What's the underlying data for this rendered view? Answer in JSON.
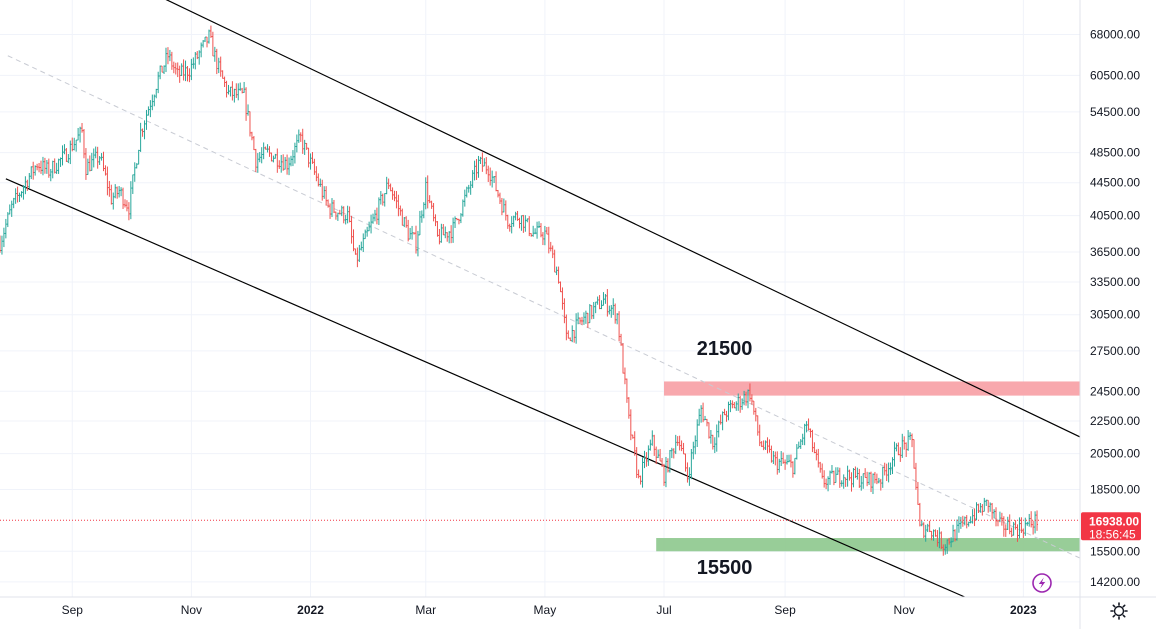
{
  "chart_data": {
    "type": "candlestick",
    "symbol_interval": "1D",
    "y_scale": "log",
    "y_ticks": [
      68000,
      60500,
      54500,
      48500,
      44500,
      40500,
      36500,
      33500,
      30500,
      27500,
      24500,
      22500,
      20500,
      18500,
      15500,
      14200
    ],
    "y_tick_labels": [
      "68000.00",
      "60500.00",
      "54500.00",
      "48500.00",
      "44500.00",
      "40500.00",
      "36500.00",
      "33500.00",
      "30500.00",
      "27500.00",
      "24500.00",
      "22500.00",
      "20500.00",
      "18500.00",
      "15500.00",
      "14200.00"
    ],
    "ylim": [
      13600,
      74000
    ],
    "x_range": [
      "2021-07-26",
      "2023-01-30"
    ],
    "x_ticks": [
      {
        "date": "2021-09-01",
        "label": "Sep",
        "year": false
      },
      {
        "date": "2021-11-01",
        "label": "Nov",
        "year": false
      },
      {
        "date": "2022-01-01",
        "label": "2022",
        "year": true
      },
      {
        "date": "2022-03-01",
        "label": "Mar",
        "year": false
      },
      {
        "date": "2022-05-01",
        "label": "May",
        "year": false
      },
      {
        "date": "2022-07-01",
        "label": "Jul",
        "year": false
      },
      {
        "date": "2022-09-01",
        "label": "Sep",
        "year": false
      },
      {
        "date": "2022-11-01",
        "label": "Nov",
        "year": false
      },
      {
        "date": "2023-01-01",
        "label": "2023",
        "year": true
      }
    ],
    "up_color": "#26a69a",
    "down_color": "#ef5350",
    "price_path": [
      [
        "2021-07-26",
        37500
      ],
      [
        "2021-08-01",
        41500
      ],
      [
        "2021-08-08",
        44500
      ],
      [
        "2021-08-14",
        47000
      ],
      [
        "2021-08-20",
        46000
      ],
      [
        "2021-08-28",
        48000
      ],
      [
        "2021-09-06",
        51500
      ],
      [
        "2021-09-08",
        46500
      ],
      [
        "2021-09-15",
        48000
      ],
      [
        "2021-09-21",
        42500
      ],
      [
        "2021-09-25",
        43500
      ],
      [
        "2021-09-30",
        41500
      ],
      [
        "2021-10-06",
        51500
      ],
      [
        "2021-10-15",
        60000
      ],
      [
        "2021-10-20",
        64000
      ],
      [
        "2021-10-25",
        60500
      ],
      [
        "2021-10-31",
        61500
      ],
      [
        "2021-11-10",
        67500
      ],
      [
        "2021-11-16",
        60500
      ],
      [
        "2021-11-20",
        57500
      ],
      [
        "2021-11-28",
        57000
      ],
      [
        "2021-12-04",
        47500
      ],
      [
        "2021-12-10",
        48500
      ],
      [
        "2021-12-20",
        47000
      ],
      [
        "2021-12-27",
        50500
      ],
      [
        "2022-01-05",
        44500
      ],
      [
        "2022-01-10",
        41500
      ],
      [
        "2022-01-20",
        40500
      ],
      [
        "2022-01-24",
        35500
      ],
      [
        "2022-02-05",
        41500
      ],
      [
        "2022-02-10",
        44500
      ],
      [
        "2022-02-20",
        38500
      ],
      [
        "2022-02-24",
        37500
      ],
      [
        "2022-03-01",
        44000
      ],
      [
        "2022-03-07",
        38000
      ],
      [
        "2022-03-15",
        39000
      ],
      [
        "2022-03-28",
        47000
      ],
      [
        "2022-04-02",
        46500
      ],
      [
        "2022-04-12",
        40000
      ],
      [
        "2022-04-18",
        40500
      ],
      [
        "2022-04-25",
        38500
      ],
      [
        "2022-05-01",
        38500
      ],
      [
        "2022-05-08",
        34000
      ],
      [
        "2022-05-12",
        28500
      ],
      [
        "2022-05-20",
        30000
      ],
      [
        "2022-05-31",
        31800
      ],
      [
        "2022-06-07",
        30500
      ],
      [
        "2022-06-13",
        22500
      ],
      [
        "2022-06-18",
        19000
      ],
      [
        "2022-06-25",
        21200
      ],
      [
        "2022-07-01",
        19300
      ],
      [
        "2022-07-08",
        21600
      ],
      [
        "2022-07-13",
        19200
      ],
      [
        "2022-07-20",
        23300
      ],
      [
        "2022-07-26",
        21200
      ],
      [
        "2022-08-01",
        23000
      ],
      [
        "2022-08-14",
        24400
      ],
      [
        "2022-08-19",
        21200
      ],
      [
        "2022-08-27",
        20000
      ],
      [
        "2022-09-05",
        19800
      ],
      [
        "2022-09-12",
        22300
      ],
      [
        "2022-09-20",
        18900
      ],
      [
        "2022-10-01",
        19300
      ],
      [
        "2022-10-12",
        19000
      ],
      [
        "2022-10-20",
        19100
      ],
      [
        "2022-10-29",
        20800
      ],
      [
        "2022-11-05",
        21200
      ],
      [
        "2022-11-09",
        16500
      ],
      [
        "2022-11-14",
        16600
      ],
      [
        "2022-11-21",
        15800
      ],
      [
        "2022-11-28",
        16400
      ],
      [
        "2022-12-05",
        17100
      ],
      [
        "2022-12-14",
        17800
      ],
      [
        "2022-12-19",
        16700
      ],
      [
        "2022-12-30",
        16550
      ],
      [
        "2023-01-08",
        16938
      ]
    ],
    "channel_upper": [
      [
        "2021-10-10",
        77000
      ],
      [
        "2023-01-30",
        21500
      ]
    ],
    "channel_lower": [
      [
        "2021-07-29",
        45000
      ],
      [
        "2022-12-02",
        13600
      ]
    ],
    "channel_mid": [
      [
        "2021-07-30",
        64000
      ],
      [
        "2023-01-30",
        15200
      ]
    ],
    "resistance_zone": {
      "from": "2022-07-01",
      "to": "2023-01-30",
      "low": 24200,
      "high": 25200,
      "color": "#f7a1a6"
    },
    "support_zone": {
      "from": "2022-06-27",
      "to": "2023-01-30",
      "low": 15500,
      "high": 16100,
      "color": "#8fc98f"
    },
    "annotations": [
      {
        "text": "21500",
        "date": "2022-08-01",
        "price": 27200
      },
      {
        "text": "15500",
        "date": "2022-08-01",
        "price": 14520
      }
    ],
    "last_price": {
      "value": 16938,
      "label": "16938.00",
      "countdown": "18:56:45",
      "color": "#f23645"
    }
  },
  "toolbar": {
    "settings_icon": "gear-icon",
    "lightning_icon": "lightning-icon",
    "lightning_color": "#9c27b0"
  }
}
